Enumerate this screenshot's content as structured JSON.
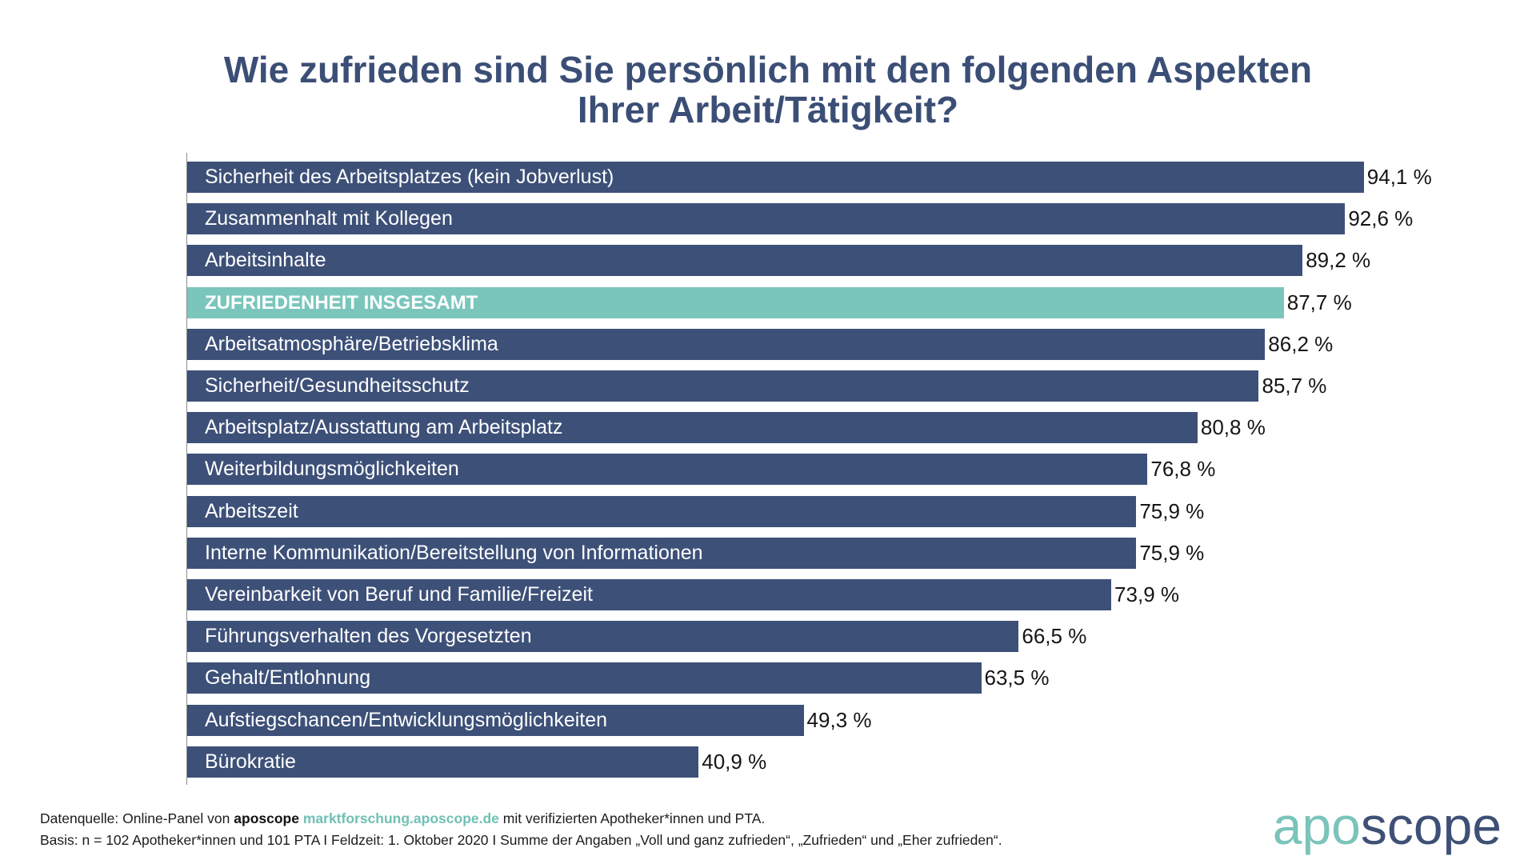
{
  "chart_data": {
    "type": "bar",
    "orientation": "horizontal",
    "title_lines": [
      "Wie zufrieden sind Sie persönlich mit den folgenden Aspekten",
      "Ihrer Arbeit/Tätigkeit?"
    ],
    "categories": [
      "Sicherheit des Arbeitsplatzes (kein Jobverlust)",
      "Zusammenhalt mit Kollegen",
      "Arbeitsinhalte",
      "ZUFRIEDENHEIT INSGESAMT",
      "Arbeitsatmosphäre/Betriebsklima",
      "Sicherheit/Gesundheitsschutz",
      "Arbeitsplatz/Ausstattung am Arbeitsplatz",
      "Weiterbildungsmöglichkeiten",
      "Arbeitszeit",
      "Interne Kommunikation/Bereitstellung von Informationen",
      "Vereinbarkeit von Beruf und Familie/Freizeit",
      "Führungsverhalten des Vorgesetzten",
      "Gehalt/Entlohnung",
      "Aufstiegschancen/Entwicklungsmöglichkeiten",
      "Bürokratie"
    ],
    "values": [
      94.1,
      92.6,
      89.2,
      87.7,
      86.2,
      85.7,
      80.8,
      76.8,
      75.9,
      75.9,
      73.9,
      66.5,
      63.5,
      49.3,
      40.9
    ],
    "value_labels": [
      "94,1 %",
      "92,6 %",
      "89,2 %",
      "87,7 %",
      "86,2 %",
      "85,7 %",
      "80,8 %",
      "76,8 %",
      "75,9 %",
      "75,9 %",
      "73,9 %",
      "66,5 %",
      "63,5 %",
      "49,3 %",
      "40,9 %"
    ],
    "highlight_index": 3,
    "xlim": [
      0,
      100
    ],
    "grid": false,
    "legend": "none"
  },
  "footer": {
    "line1_prefix": "Datenquelle: Online-Panel von",
    "line1_brand": "aposcope",
    "line1_link": "marktforschung.aposcope.de",
    "line1_suffix": "mit verifizierten Apotheker*innen und PTA.",
    "line2": "Basis: n = 102 Apotheker*innen und 101 PTA I Feldzeit: 1. Oktober 2020 I Summe der Angaben „Voll und ganz zufrieden“, „Zufrieden“ und „Eher zufrieden“."
  },
  "logo": {
    "part1": "apo",
    "part2": "scope"
  },
  "colors": {
    "bar": "#3d5078",
    "highlight": "#7ac6bc",
    "title": "#3b4e76",
    "accent": "#70c0b5",
    "logo_dark": "#3e5075"
  }
}
